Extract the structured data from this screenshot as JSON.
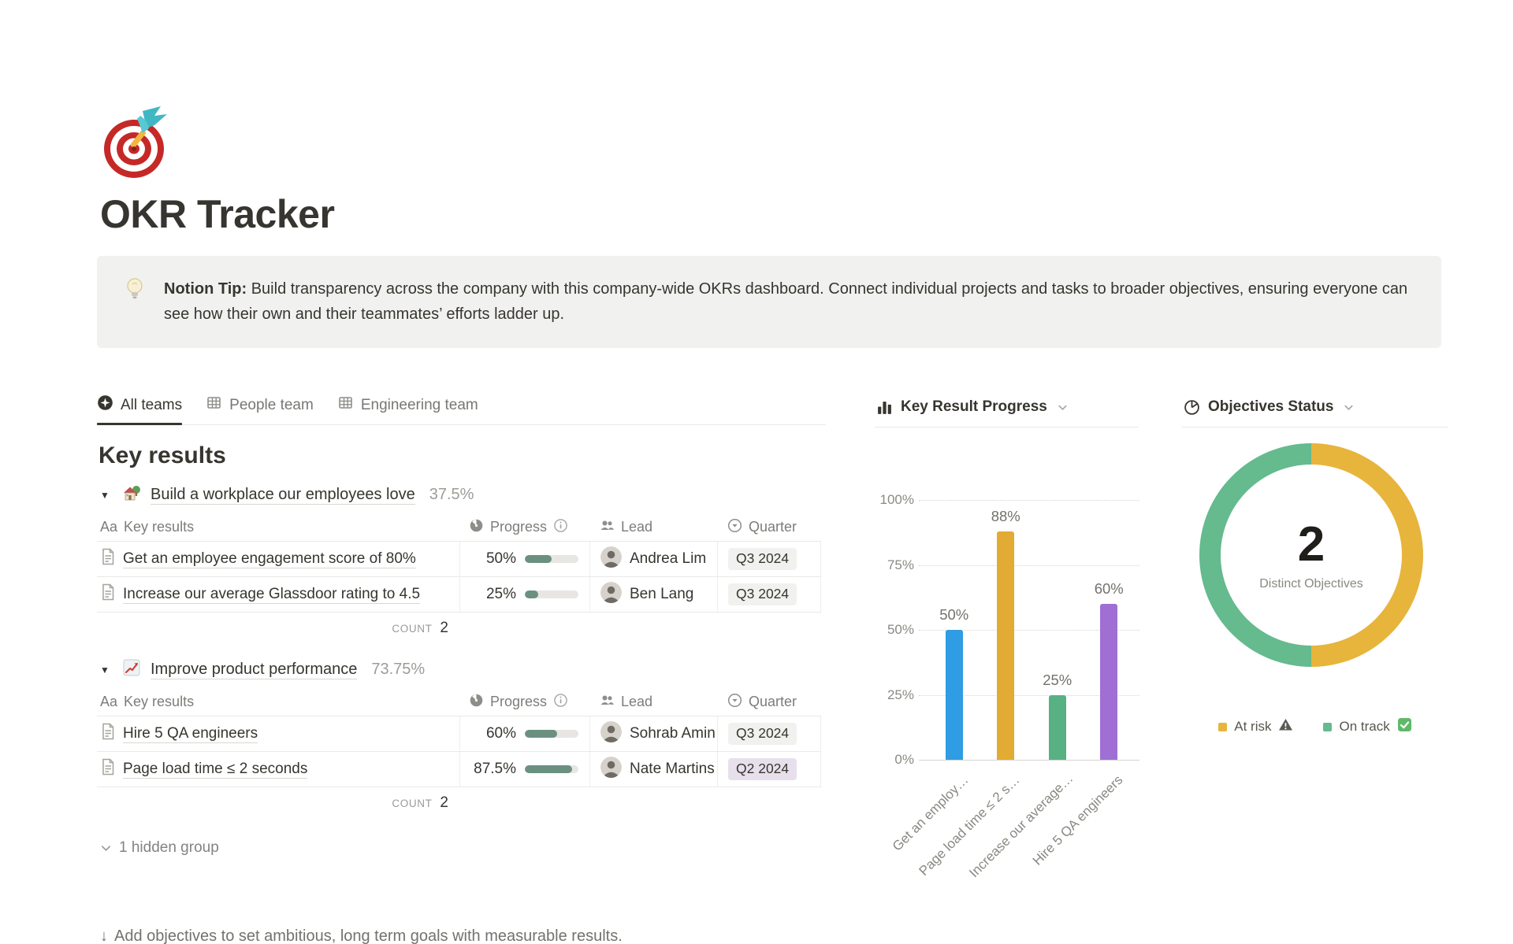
{
  "page": {
    "title": "OKR Tracker",
    "icon": "target-emoji",
    "callout": {
      "icon": "lightbulb-emoji",
      "bold": "Notion Tip:",
      "text": " Build transparency across the company with this company-wide OKRs dashboard. Connect individual projects and tasks to broader objectives, ensuring everyone can see how their own and their teammates’ efforts ladder up."
    },
    "footer_arrow": "↓",
    "footer": "Add objectives to set ambitious, long term goals with measurable results."
  },
  "tabs": [
    {
      "label": "All teams",
      "icon": "star-circle-icon",
      "active": true
    },
    {
      "label": "People team",
      "icon": "table-icon",
      "active": false
    },
    {
      "label": "Engineering team",
      "icon": "table-icon",
      "active": false
    }
  ],
  "key_results": {
    "heading": "Key results",
    "columns": {
      "name_prefix": "Aa",
      "name": "Key results",
      "progress": "Progress",
      "lead": "Lead",
      "quarter": "Quarter"
    },
    "count_label": "COUNT",
    "hidden_group_label": "1 hidden group",
    "groups": [
      {
        "emoji": "house-emoji",
        "title": "Build a workplace our employees love",
        "percent": "37.5%",
        "count": "2",
        "rows": [
          {
            "name": "Get an employee engagement score of 80%",
            "progress_label": "50%",
            "progress_value": 50,
            "lead": "Andrea Lim",
            "quarter": "Q3 2024",
            "quarter_style": "gray"
          },
          {
            "name": "Increase our average Glassdoor rating to 4.5",
            "progress_label": "25%",
            "progress_value": 25,
            "lead": "Ben Lang",
            "quarter": "Q3 2024",
            "quarter_style": "gray"
          }
        ]
      },
      {
        "emoji": "chart-up-emoji",
        "title": "Improve product performance",
        "percent": "73.75%",
        "count": "2",
        "rows": [
          {
            "name": "Hire 5 QA engineers",
            "progress_label": "60%",
            "progress_value": 60,
            "lead": "Sohrab Amin",
            "quarter": "Q3 2024",
            "quarter_style": "gray"
          },
          {
            "name": "Page load time ≤ 2 seconds",
            "progress_label": "87.5%",
            "progress_value": 87.5,
            "lead": "Nate Martins",
            "quarter": "Q2 2024",
            "quarter_style": "purple"
          }
        ]
      }
    ]
  },
  "chart_data": [
    {
      "type": "bar",
      "title": "Key Result Progress",
      "categories": [
        "Get an employ…",
        "Page load time ≤ 2 s…",
        "Increase our average…",
        "Hire 5 QA engineers"
      ],
      "values": [
        50,
        88,
        25,
        60
      ],
      "value_labels": [
        "50%",
        "88%",
        "25%",
        "60%"
      ],
      "colors": [
        "#2f9ce4",
        "#e2ab34",
        "#58b183",
        "#9f6fd4"
      ],
      "ylabel": "",
      "xlabel": "",
      "ylim": [
        0,
        100
      ],
      "yticks": [
        "0%",
        "25%",
        "50%",
        "75%",
        "100%"
      ],
      "grid": true,
      "legend_position": "none"
    },
    {
      "type": "pie",
      "title": "Objectives Status",
      "donut": true,
      "center_value": "2",
      "center_label": "Distinct Objectives",
      "slices": [
        {
          "label": "At risk",
          "value": 1,
          "color": "#e7b43c",
          "badge": "warning"
        },
        {
          "label": "On track",
          "value": 1,
          "color": "#65ba8e",
          "badge": "check"
        }
      ],
      "legend_position": "bottom"
    }
  ]
}
